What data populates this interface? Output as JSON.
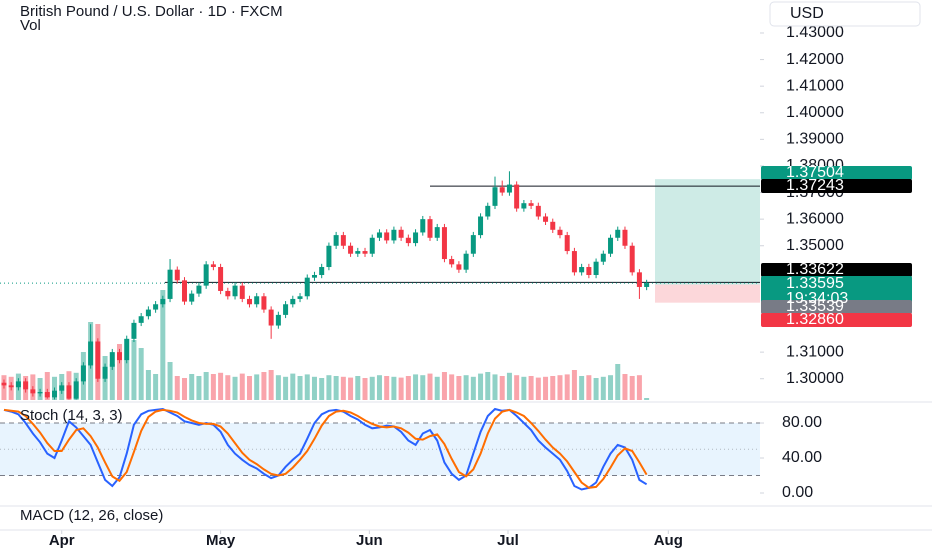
{
  "chart_data": {
    "type": "candlestick",
    "title": "British Pound / U.S. Dollar · 1D · FXCM",
    "volume_label": "Vol",
    "currency": "USD",
    "up_color": "#089981",
    "down_color": "#f23645",
    "ylim": [
      1.292,
      1.4424
    ],
    "xlim": [
      -0.55,
      104.7
    ],
    "yticks": [
      {
        "value": 1.43,
        "label": "1.43000"
      },
      {
        "value": 1.42,
        "label": "1.42000"
      },
      {
        "value": 1.41,
        "label": "1.41000"
      },
      {
        "value": 1.4,
        "label": "1.40000"
      },
      {
        "value": 1.39,
        "label": "1.39000"
      },
      {
        "value": 1.38,
        "label": "1.38000"
      },
      {
        "value": 1.37,
        "label": "1.37000"
      },
      {
        "value": 1.36,
        "label": "1.36000"
      },
      {
        "value": 1.35,
        "label": "1.35000"
      },
      {
        "value": 1.31,
        "label": "1.31000"
      },
      {
        "value": 1.3,
        "label": "1.30000"
      }
    ],
    "xticks": [
      {
        "value": 8,
        "label": "Apr"
      },
      {
        "value": 30,
        "label": "May"
      },
      {
        "value": 50.6,
        "label": "Jun"
      },
      {
        "value": 69.8,
        "label": "Jul"
      },
      {
        "value": 92,
        "label": "Aug"
      }
    ],
    "ohlc": [
      [
        1.2985,
        1.2997,
        1.2963,
        1.2975
      ],
      [
        1.2975,
        1.2987,
        1.2956,
        1.2968
      ],
      [
        1.2968,
        1.3002,
        1.2956,
        1.299
      ],
      [
        1.299,
        1.3002,
        1.2948,
        1.296
      ],
      [
        1.296,
        1.2972,
        1.2933,
        1.2945
      ],
      [
        1.2945,
        1.2962,
        1.2933,
        1.295
      ],
      [
        1.295,
        1.2962,
        1.2925,
        1.293
      ],
      [
        1.293,
        1.2967,
        1.2922,
        1.2955
      ],
      [
        1.2955,
        1.2987,
        1.2943,
        1.2975
      ],
      [
        1.2975,
        1.2987,
        1.2922,
        1.2925
      ],
      [
        1.2925,
        1.3002,
        1.2922,
        1.299
      ],
      [
        1.299,
        1.3062,
        1.2978,
        1.305
      ],
      [
        1.305,
        1.3205,
        1.3038,
        1.314
      ],
      [
        1.314,
        1.3152,
        1.2988,
        1.3
      ],
      [
        1.3,
        1.3057,
        1.2988,
        1.3045
      ],
      [
        1.3045,
        1.3112,
        1.3033,
        1.31
      ],
      [
        1.31,
        1.3112,
        1.3058,
        1.307
      ],
      [
        1.307,
        1.3162,
        1.3058,
        1.315
      ],
      [
        1.315,
        1.3222,
        1.3138,
        1.321
      ],
      [
        1.321,
        1.3247,
        1.3198,
        1.3235
      ],
      [
        1.3235,
        1.3272,
        1.3223,
        1.326
      ],
      [
        1.326,
        1.3292,
        1.3248,
        1.328
      ],
      [
        1.328,
        1.3312,
        1.3268,
        1.33
      ],
      [
        1.33,
        1.345,
        1.3288,
        1.341
      ],
      [
        1.341,
        1.3422,
        1.3358,
        1.337
      ],
      [
        1.337,
        1.3382,
        1.3278,
        1.329
      ],
      [
        1.329,
        1.3332,
        1.3278,
        1.332
      ],
      [
        1.332,
        1.3362,
        1.3308,
        1.335
      ],
      [
        1.335,
        1.3442,
        1.3338,
        1.343
      ],
      [
        1.343,
        1.3442,
        1.3408,
        1.342
      ],
      [
        1.342,
        1.3432,
        1.3318,
        1.333
      ],
      [
        1.333,
        1.3342,
        1.3298,
        1.331
      ],
      [
        1.331,
        1.3362,
        1.3298,
        1.335
      ],
      [
        1.335,
        1.3362,
        1.3288,
        1.33
      ],
      [
        1.33,
        1.3312,
        1.3268,
        1.328
      ],
      [
        1.328,
        1.3322,
        1.3268,
        1.331
      ],
      [
        1.331,
        1.3322,
        1.3248,
        1.326
      ],
      [
        1.326,
        1.3272,
        1.315,
        1.32
      ],
      [
        1.32,
        1.3252,
        1.3188,
        1.324
      ],
      [
        1.324,
        1.3292,
        1.3228,
        1.328
      ],
      [
        1.328,
        1.3312,
        1.3268,
        1.33
      ],
      [
        1.33,
        1.3322,
        1.3288,
        1.331
      ],
      [
        1.331,
        1.3392,
        1.3298,
        1.338
      ],
      [
        1.338,
        1.3402,
        1.3368,
        1.339
      ],
      [
        1.339,
        1.3432,
        1.3378,
        1.342
      ],
      [
        1.342,
        1.3512,
        1.3408,
        1.35
      ],
      [
        1.35,
        1.3552,
        1.3488,
        1.354
      ],
      [
        1.354,
        1.3552,
        1.3488,
        1.35
      ],
      [
        1.35,
        1.3512,
        1.3458,
        1.347
      ],
      [
        1.347,
        1.3492,
        1.3458,
        1.348
      ],
      [
        1.348,
        1.3492,
        1.3458,
        1.347
      ],
      [
        1.347,
        1.3542,
        1.3458,
        1.353
      ],
      [
        1.353,
        1.3562,
        1.3518,
        1.355
      ],
      [
        1.355,
        1.3562,
        1.3508,
        1.352
      ],
      [
        1.352,
        1.3572,
        1.3508,
        1.356
      ],
      [
        1.356,
        1.3572,
        1.3518,
        1.353
      ],
      [
        1.353,
        1.3542,
        1.3498,
        1.351
      ],
      [
        1.351,
        1.3562,
        1.3498,
        1.355
      ],
      [
        1.355,
        1.3612,
        1.3538,
        1.36
      ],
      [
        1.36,
        1.3612,
        1.3518,
        1.353
      ],
      [
        1.353,
        1.3582,
        1.3518,
        1.357
      ],
      [
        1.357,
        1.3582,
        1.3438,
        1.345
      ],
      [
        1.345,
        1.3462,
        1.3418,
        1.343
      ],
      [
        1.343,
        1.3442,
        1.3398,
        1.341
      ],
      [
        1.341,
        1.3482,
        1.3398,
        1.347
      ],
      [
        1.347,
        1.3552,
        1.3458,
        1.354
      ],
      [
        1.354,
        1.3622,
        1.3528,
        1.361
      ],
      [
        1.361,
        1.3662,
        1.3598,
        1.365
      ],
      [
        1.365,
        1.376,
        1.3638,
        1.372
      ],
      [
        1.372,
        1.3745,
        1.3688,
        1.37
      ],
      [
        1.37,
        1.378,
        1.3688,
        1.373
      ],
      [
        1.373,
        1.3742,
        1.3628,
        1.364
      ],
      [
        1.364,
        1.3672,
        1.3628,
        1.366
      ],
      [
        1.366,
        1.3672,
        1.3638,
        1.365
      ],
      [
        1.365,
        1.3662,
        1.3598,
        1.361
      ],
      [
        1.361,
        1.3622,
        1.3578,
        1.359
      ],
      [
        1.359,
        1.3602,
        1.3548,
        1.356
      ],
      [
        1.356,
        1.3572,
        1.3528,
        1.354
      ],
      [
        1.354,
        1.3552,
        1.3468,
        1.348
      ],
      [
        1.348,
        1.3492,
        1.3388,
        1.34
      ],
      [
        1.34,
        1.3432,
        1.3388,
        1.342
      ],
      [
        1.342,
        1.3432,
        1.3378,
        1.339
      ],
      [
        1.339,
        1.3452,
        1.3378,
        1.344
      ],
      [
        1.344,
        1.3482,
        1.3428,
        1.347
      ],
      [
        1.347,
        1.3542,
        1.3458,
        1.353
      ],
      [
        1.353,
        1.3572,
        1.3518,
        1.356
      ],
      [
        1.356,
        1.3572,
        1.3488,
        1.35
      ],
      [
        1.35,
        1.3512,
        1.3388,
        1.34
      ],
      [
        1.34,
        1.3412,
        1.33,
        1.3345
      ],
      [
        1.3345,
        1.3372,
        1.3333,
        1.33595
      ]
    ],
    "volume": [
      62,
      58,
      66,
      60,
      64,
      55,
      70,
      58,
      65,
      72,
      68,
      120,
      195,
      190,
      110,
      90,
      140,
      100,
      150,
      130,
      75,
      65,
      275,
      95,
      60,
      55,
      65,
      60,
      70,
      65,
      68,
      62,
      58,
      66,
      60,
      64,
      70,
      75,
      62,
      58,
      66,
      60,
      64,
      58,
      55,
      62,
      60,
      58,
      56,
      60,
      55,
      58,
      62,
      60,
      58,
      56,
      60,
      64,
      62,
      66,
      58,
      70,
      64,
      60,
      62,
      58,
      66,
      70,
      64,
      60,
      68,
      62,
      58,
      60,
      56,
      58,
      60,
      62,
      64,
      75,
      60,
      62,
      55,
      58,
      62,
      90,
      65,
      60,
      62,
      5
    ],
    "volume_lim": [
      0,
      1000
    ],
    "markers": {
      "values": [
        1.37504,
        1.37243,
        1.33622,
        1.33595,
        1.33539,
        1.3286
      ],
      "value_labels": [
        "1.37504",
        "1.37243",
        "1.33622",
        "1.33595",
        "1.33539",
        "1.32860"
      ],
      "colors": [
        "#089981",
        "#000000",
        "#000000",
        "#089981",
        "#787b86",
        "#f23645"
      ]
    },
    "countdown": "19:34:03",
    "stoch": {
      "title": "Stoch (14, 3, 3)",
      "ylim": [
        -13.7,
        100.6
      ],
      "yticks": [
        {
          "value": 80,
          "label": "80.00"
        },
        {
          "value": 40,
          "label": "40.00"
        },
        {
          "value": 0,
          "label": "0.00"
        }
      ],
      "bands": [
        20,
        80
      ],
      "midline": 50,
      "series": [
        {
          "color": "#2962ff",
          "values": [
            95,
            93,
            90,
            80,
            68,
            58,
            45,
            40,
            60,
            82,
            75,
            65,
            55,
            35,
            15,
            8,
            18,
            45,
            78,
            90,
            94,
            95,
            96,
            92,
            88,
            82,
            80,
            78,
            80,
            78,
            70,
            55,
            45,
            38,
            32,
            28,
            22,
            17,
            20,
            30,
            38,
            45,
            62,
            80,
            90,
            94,
            95,
            93,
            88,
            84,
            78,
            74,
            75,
            77,
            76,
            70,
            60,
            55,
            68,
            72,
            60,
            35,
            22,
            15,
            20,
            45,
            70,
            88,
            96,
            94,
            95,
            88,
            80,
            72,
            60,
            52,
            45,
            38,
            25,
            8,
            4,
            6,
            12,
            30,
            45,
            55,
            52,
            38,
            15,
            10
          ]
        },
        {
          "color": "#ff6d00",
          "values": [
            95,
            94,
            93,
            88,
            79,
            69,
            57,
            48,
            48,
            61,
            72,
            74,
            65,
            52,
            35,
            19,
            14,
            24,
            47,
            71,
            87,
            93,
            95,
            94,
            92,
            87,
            83,
            80,
            79,
            79,
            76,
            68,
            57,
            46,
            38,
            33,
            27,
            22,
            20,
            22,
            29,
            38,
            48,
            62,
            77,
            88,
            93,
            94,
            92,
            88,
            83,
            79,
            76,
            75,
            76,
            74,
            69,
            62,
            61,
            65,
            67,
            56,
            39,
            24,
            19,
            27,
            45,
            68,
            85,
            93,
            95,
            92,
            88,
            80,
            71,
            61,
            52,
            45,
            36,
            24,
            12,
            6,
            7,
            16,
            29,
            43,
            51,
            48,
            35,
            21
          ]
        }
      ]
    },
    "macd": {
      "title": "MACD (12, 26, close)"
    }
  }
}
